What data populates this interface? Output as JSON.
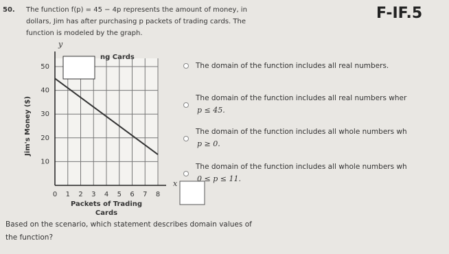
{
  "problem": {
    "number": "50.",
    "lines": [
      "The function f(p) = 45 − 4p represents the amount of money, in",
      "dollars, Jim has after purchasing p packets of trading cards. The",
      "function is modeled by the graph."
    ],
    "standard": "F-IF.5"
  },
  "graph": {
    "title": "ng Cards",
    "y_axis_letter": "y",
    "x_axis_letter": "x",
    "y_label": "Jim's Money ($)",
    "x_label": [
      "Packets of Trading",
      "Cards"
    ],
    "xlim": [
      0,
      8
    ],
    "ylim": [
      0,
      50
    ],
    "xticks": [
      0,
      1,
      2,
      3,
      4,
      5,
      6,
      7,
      8
    ],
    "yticks": [
      10,
      20,
      30,
      40,
      50
    ],
    "line": {
      "x": [
        0,
        8
      ],
      "y": [
        45,
        13
      ],
      "color": "#333333"
    }
  },
  "options": [
    [
      "The domain of the function includes all real numbers."
    ],
    [
      "The domain of the function includes all real numbers wher",
      "p ≤ 45."
    ],
    [
      "The domain of the function includes all whole numbers wh",
      "p ≥ 0."
    ],
    [
      "The domain of the function includes all whole numbers wh",
      "0 ≤ p ≤ 11."
    ]
  ],
  "prompt": [
    "Based on the scenario, which statement describes domain values of",
    "the function?"
  ]
}
